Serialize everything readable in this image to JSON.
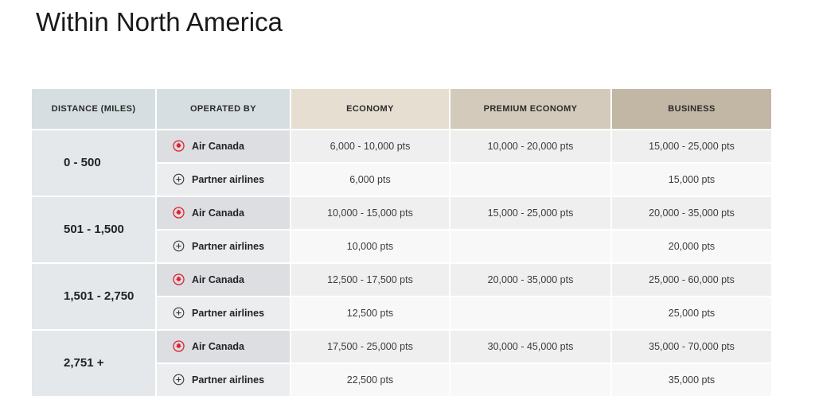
{
  "page": {
    "title": "Within North America"
  },
  "table": {
    "headers": [
      "DISTANCE (MILES)",
      "OPERATED BY",
      "ECONOMY",
      "PREMIUM ECONOMY",
      "BUSINESS"
    ],
    "groups": [
      {
        "distance": "0 - 500",
        "rows": [
          {
            "carrier": "Air Canada",
            "icon": "air-canada-roundel",
            "economy": "6,000 - 10,000 pts",
            "premium_economy": "10,000 - 20,000 pts",
            "business": "15,000 - 25,000 pts"
          },
          {
            "carrier": "Partner airlines",
            "icon": "partner-airlines-plus",
            "economy": "6,000 pts",
            "premium_economy": "",
            "business": "15,000 pts"
          }
        ]
      },
      {
        "distance": "501 - 1,500",
        "rows": [
          {
            "carrier": "Air Canada",
            "icon": "air-canada-roundel",
            "economy": "10,000 - 15,000 pts",
            "premium_economy": "15,000 - 25,000 pts",
            "business": "20,000 - 35,000 pts"
          },
          {
            "carrier": "Partner airlines",
            "icon": "partner-airlines-plus",
            "economy": "10,000 pts",
            "premium_economy": "",
            "business": "20,000 pts"
          }
        ]
      },
      {
        "distance": "1,501 - 2,750",
        "rows": [
          {
            "carrier": "Air Canada",
            "icon": "air-canada-roundel",
            "economy": "12,500 - 17,500 pts",
            "premium_economy": "20,000 - 35,000 pts",
            "business": "25,000 - 60,000 pts"
          },
          {
            "carrier": "Partner airlines",
            "icon": "partner-airlines-plus",
            "economy": "12,500 pts",
            "premium_economy": "",
            "business": "25,000 pts"
          }
        ]
      },
      {
        "distance": "2,751 +",
        "rows": [
          {
            "carrier": "Air Canada",
            "icon": "air-canada-roundel",
            "economy": "17,500 - 25,000 pts",
            "premium_economy": "30,000 - 45,000 pts",
            "business": "35,000 - 70,000 pts"
          },
          {
            "carrier": "Partner airlines",
            "icon": "partner-airlines-plus",
            "economy": "22,500 pts",
            "premium_economy": "",
            "business": "35,000 pts"
          }
        ]
      }
    ],
    "colors": {
      "air_canada_red": "#df1f2d",
      "partner_icon_gray": "#3c3c3c",
      "header_gray_blue": "#d6dee1",
      "header_economy": "#e6ded1",
      "header_premium_economy": "#d4cabb",
      "header_business": "#c2b7a4",
      "distance_cell_bg": "#e4e8ea",
      "air_canada_carrier_bg": "#dcdee1",
      "air_canada_value_bg": "#efeff0",
      "partner_carrier_bg": "#ebedee",
      "partner_value_bg": "#f8f8f8"
    }
  },
  "chart_data": {
    "type": "table",
    "title": "Within North America",
    "columns": [
      "DISTANCE (MILES)",
      "OPERATED BY",
      "ECONOMY",
      "PREMIUM ECONOMY",
      "BUSINESS"
    ],
    "rows": [
      [
        "0 - 500",
        "Air Canada",
        "6,000 - 10,000 pts",
        "10,000 - 20,000 pts",
        "15,000 - 25,000 pts"
      ],
      [
        "0 - 500",
        "Partner airlines",
        "6,000 pts",
        "",
        "15,000 pts"
      ],
      [
        "501 - 1,500",
        "Air Canada",
        "10,000 - 15,000 pts",
        "15,000 - 25,000 pts",
        "20,000 - 35,000 pts"
      ],
      [
        "501 - 1,500",
        "Partner airlines",
        "10,000 pts",
        "",
        "20,000 pts"
      ],
      [
        "1,501 - 2,750",
        "Air Canada",
        "12,500 - 17,500 pts",
        "20,000 - 35,000 pts",
        "25,000 - 60,000 pts"
      ],
      [
        "1,501 - 2,750",
        "Partner airlines",
        "12,500 pts",
        "",
        "25,000 pts"
      ],
      [
        "2,751 +",
        "Air Canada",
        "17,500 - 25,000 pts",
        "30,000 - 45,000 pts",
        "35,000 - 70,000 pts"
      ],
      [
        "2,751 +",
        "Partner airlines",
        "22,500 pts",
        "",
        "35,000 pts"
      ]
    ]
  }
}
